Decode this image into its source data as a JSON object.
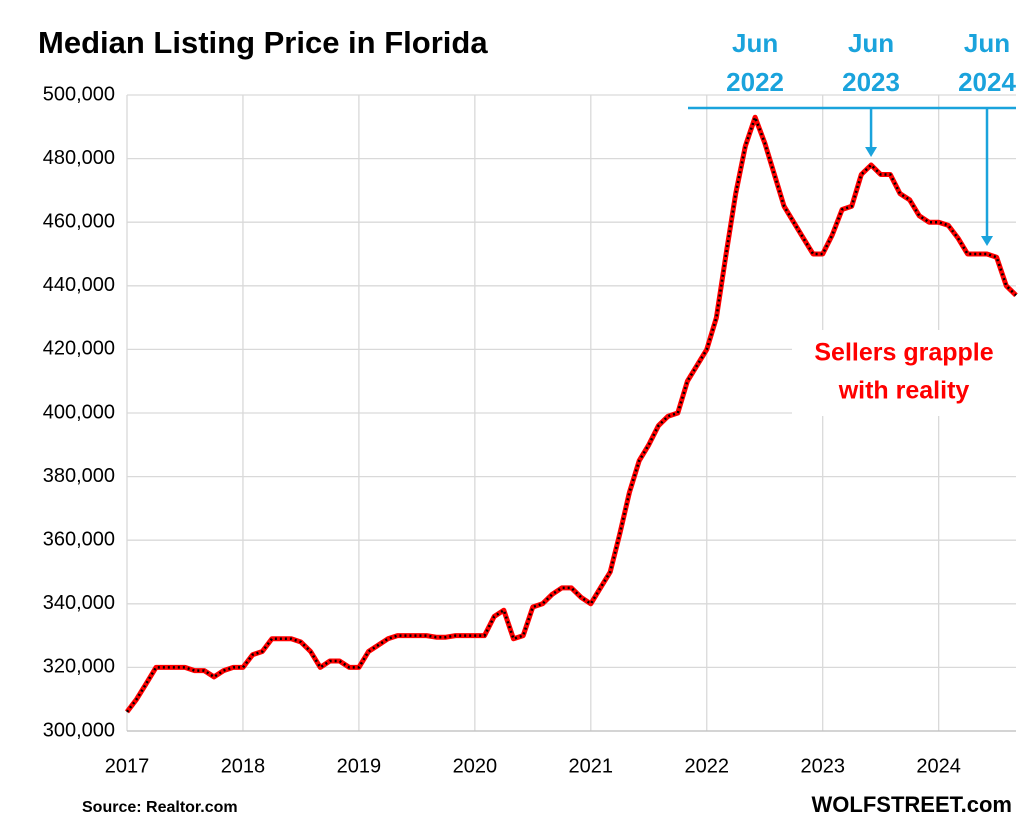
{
  "chart_data": {
    "type": "line",
    "title": "Median Listing Price in Florida",
    "x": [
      2017,
      2017.083,
      2017.167,
      2017.25,
      2017.333,
      2017.417,
      2017.5,
      2017.583,
      2017.667,
      2017.75,
      2017.833,
      2017.917,
      2018,
      2018.083,
      2018.167,
      2018.25,
      2018.333,
      2018.417,
      2018.5,
      2018.583,
      2018.667,
      2018.75,
      2018.833,
      2018.917,
      2019,
      2019.083,
      2019.167,
      2019.25,
      2019.333,
      2019.417,
      2019.5,
      2019.583,
      2019.667,
      2019.75,
      2019.833,
      2019.917,
      2020,
      2020.083,
      2020.167,
      2020.25,
      2020.333,
      2020.417,
      2020.5,
      2020.583,
      2020.667,
      2020.75,
      2020.833,
      2020.917,
      2021,
      2021.083,
      2021.167,
      2021.25,
      2021.333,
      2021.417,
      2021.5,
      2021.583,
      2021.667,
      2021.75,
      2021.833,
      2021.917,
      2022,
      2022.083,
      2022.167,
      2022.25,
      2022.333,
      2022.417,
      2022.5,
      2022.583,
      2022.667,
      2022.75,
      2022.833,
      2022.917,
      2023,
      2023.083,
      2023.167,
      2023.25,
      2023.333,
      2023.417,
      2023.5,
      2023.583,
      2023.667,
      2023.75,
      2023.833,
      2023.917,
      2024,
      2024.083,
      2024.167,
      2024.25,
      2024.333,
      2024.417,
      2024.5,
      2024.583,
      2024.667
    ],
    "series": [
      {
        "name": "Median Listing Price",
        "color": "#ff0000",
        "values": [
          306000,
          310000,
          315000,
          320000,
          320000,
          320000,
          320000,
          319000,
          319000,
          317000,
          319000,
          320000,
          320000,
          324000,
          325000,
          329000,
          329000,
          329000,
          328000,
          325000,
          320000,
          322000,
          322000,
          320000,
          320000,
          325000,
          327000,
          329000,
          330000,
          330000,
          330000,
          330000,
          329500,
          329500,
          330000,
          330000,
          330000,
          330000,
          336000,
          338000,
          329000,
          330000,
          339000,
          340000,
          343000,
          345000,
          345000,
          342000,
          340000,
          345000,
          350000,
          362000,
          375000,
          385000,
          390000,
          396000,
          399000,
          400000,
          410000,
          415000,
          420000,
          430000,
          450000,
          469000,
          484000,
          493000,
          485000,
          475000,
          465000,
          460000,
          455000,
          450000,
          450000,
          456000,
          464000,
          465000,
          475000,
          478000,
          475000,
          475000,
          469000,
          467000,
          462000,
          460000,
          460000,
          459000,
          455000,
          450000,
          450000,
          450000,
          449000,
          440000,
          437000
        ]
      }
    ],
    "xlim": [
      2017,
      2024.667
    ],
    "xticks": [
      2017,
      2018,
      2019,
      2020,
      2021,
      2022,
      2023,
      2024
    ],
    "ylim": [
      300000,
      500000
    ],
    "yticks": [
      {
        "value": 300000,
        "label": "300,000"
      },
      {
        "value": 320000,
        "label": "320,000"
      },
      {
        "value": 340000,
        "label": "340,000"
      },
      {
        "value": 360000,
        "label": "360,000"
      },
      {
        "value": 380000,
        "label": "380,000"
      },
      {
        "value": 400000,
        "label": "400,000"
      },
      {
        "value": 420000,
        "label": "420,000"
      },
      {
        "value": 440000,
        "label": "440,000"
      },
      {
        "value": 460000,
        "label": "460,000"
      },
      {
        "value": 480000,
        "label": "480,000"
      },
      {
        "value": 500000,
        "label": "500,000"
      }
    ],
    "grid": true,
    "annotations": [
      {
        "month": "Jun",
        "year": "2022",
        "x": 2022.417,
        "arrow": false
      },
      {
        "month": "Jun",
        "year": "2023",
        "x": 2023.417,
        "arrow": true
      },
      {
        "month": "Jun",
        "year": "2024",
        "x": 2024.417,
        "arrow": true
      }
    ],
    "note": [
      "Sellers grapple",
      "with reality"
    ],
    "source": "Source: Realtor.com",
    "credit": "WOLFSTREET.com"
  }
}
